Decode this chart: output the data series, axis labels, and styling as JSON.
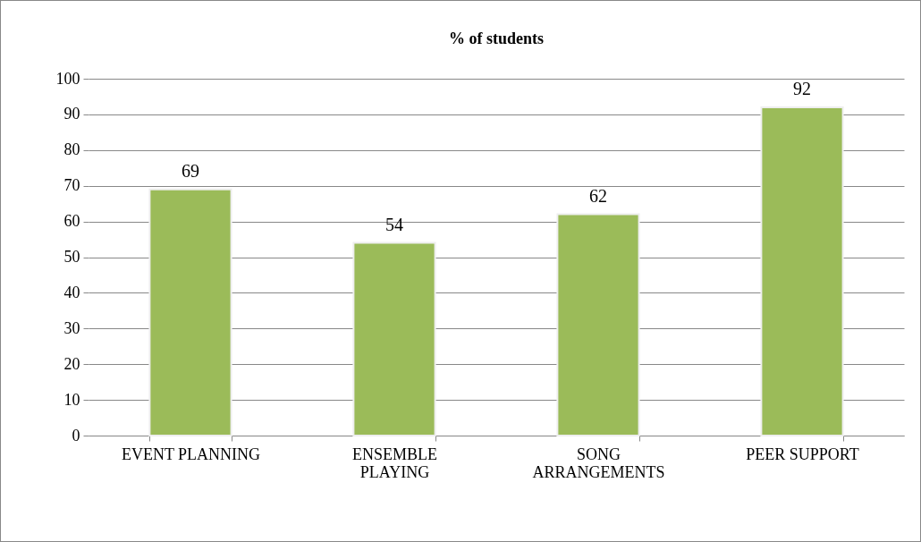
{
  "chart_data": {
    "type": "bar",
    "title": "% of students",
    "categories": [
      "EVENT PLANNING",
      "ENSEMBLE PLAYING",
      "SONG ARRANGEMENTS",
      "PEER SUPPORT"
    ],
    "values": [
      69,
      54,
      62,
      92
    ],
    "color": "#9bbb59",
    "ylim": [
      0,
      100
    ],
    "yticks": [
      0,
      10,
      20,
      30,
      40,
      50,
      60,
      70,
      80,
      90,
      100
    ],
    "grid": "y",
    "data_labels": true
  }
}
